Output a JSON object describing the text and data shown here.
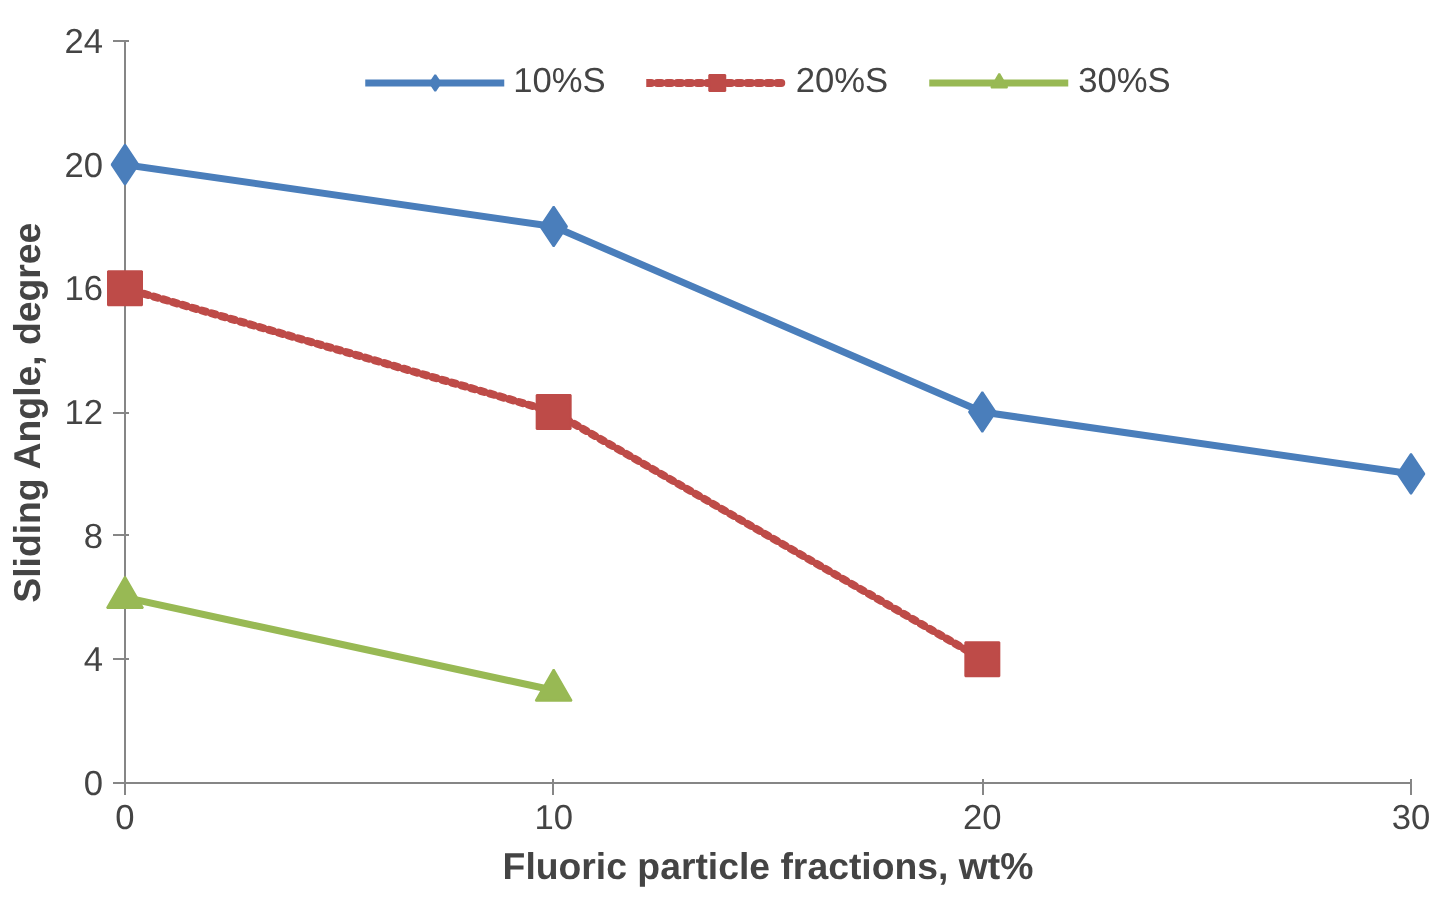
{
  "chart_data": {
    "type": "line",
    "xlabel": "Fluoric particle fractions, wt%",
    "ylabel": "Sliding Angle, degree",
    "x": [
      0,
      10,
      20,
      30
    ],
    "xlim": [
      0,
      30
    ],
    "xticks": [
      0,
      10,
      20,
      30
    ],
    "ylim": [
      0,
      24
    ],
    "yticks": [
      0,
      4,
      8,
      12,
      16,
      20,
      24
    ],
    "grid": false,
    "legend": "top",
    "series": [
      {
        "name": "10%S",
        "color": "#4a7ebb",
        "values": [
          20,
          18,
          12,
          10
        ],
        "marker": "diamond",
        "line_style": "solid"
      },
      {
        "name": "20%S",
        "color": "#be4b48",
        "values": [
          16,
          12,
          4,
          null
        ],
        "marker": "square",
        "line_style": "dotted"
      },
      {
        "name": "30%S",
        "color": "#98b954",
        "values": [
          6,
          3,
          null,
          null
        ],
        "marker": "triangle",
        "line_style": "solid"
      }
    ]
  }
}
